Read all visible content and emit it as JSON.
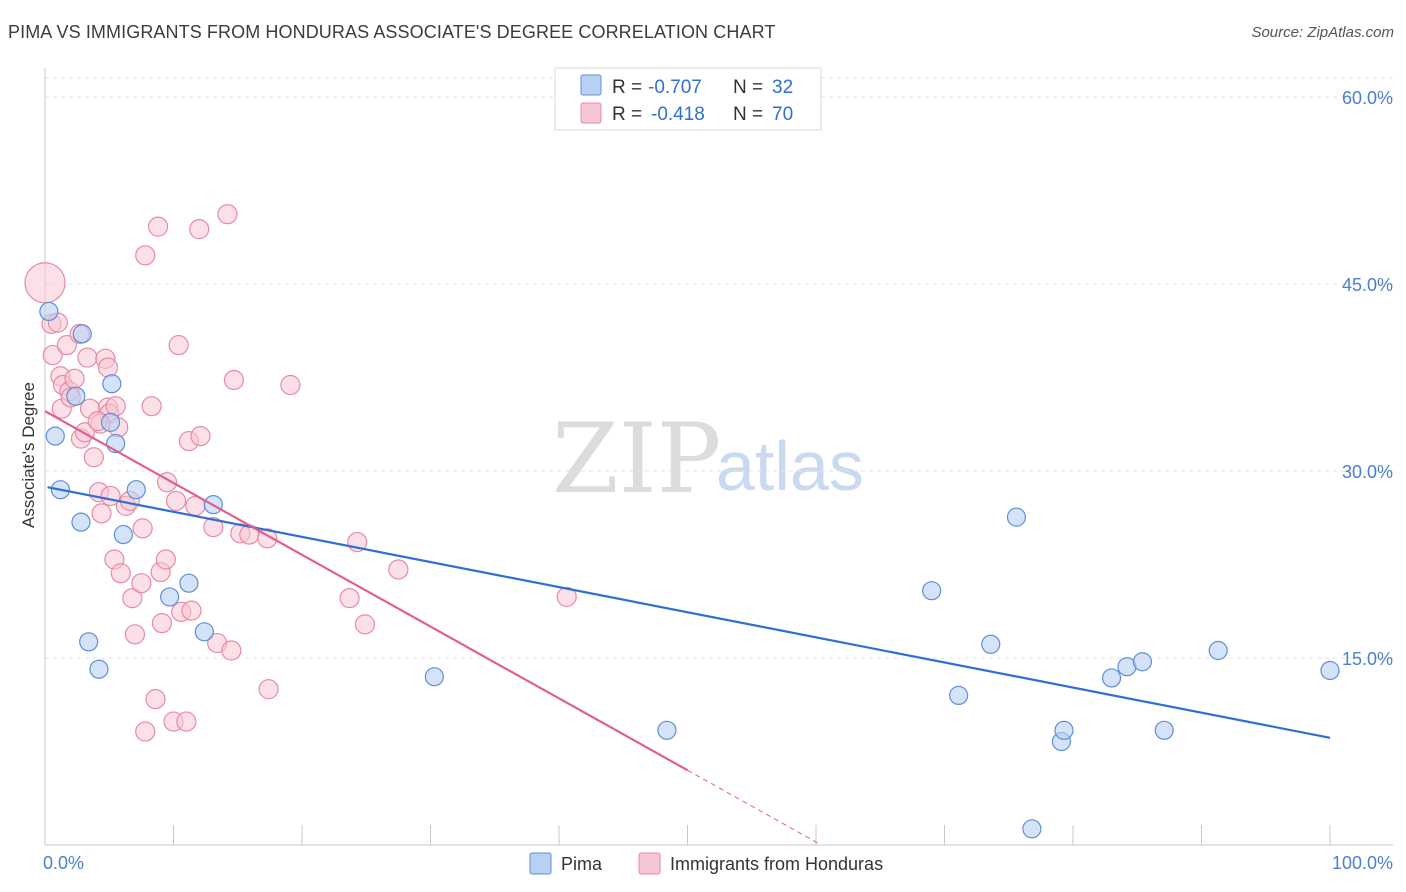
{
  "header": {
    "title": "PIMA VS IMMIGRANTS FROM HONDURAS ASSOCIATE'S DEGREE CORRELATION CHART",
    "source": "Source: ZipAtlas.com"
  },
  "watermark": {
    "zip": "ZIP",
    "atlas": "atlas"
  },
  "colors": {
    "pima_fill": "#b8d0f2",
    "pima_stroke": "#5f8fd6",
    "pima_line": "#2f6fd1",
    "hond_fill": "#f7c6d4",
    "hond_stroke": "#e88aa6",
    "hond_line": "#e0608c",
    "tick_blue": "#4a7fd0"
  },
  "legend": {
    "rows": [
      {
        "r_label": "R =",
        "r_value": "-0.707",
        "n_label": "N =",
        "n_value": "32"
      },
      {
        "r_label": "R =",
        "r_value": "-0.418",
        "n_label": "N =",
        "n_value": "70"
      }
    ]
  },
  "bottom_legend": [
    "Pima",
    "Immigrants from Honduras"
  ],
  "chart_data": {
    "type": "scatter",
    "title": "PIMA VS IMMIGRANTS FROM HONDURAS ASSOCIATE'S DEGREE CORRELATION CHART",
    "ylabel": "Associate's Degree",
    "xlabel": "",
    "xlim": [
      0,
      100
    ],
    "ylim": [
      0,
      60
    ],
    "x_tick_labels": [
      "0.0%",
      "100.0%"
    ],
    "y_ticks": [
      15,
      30,
      45,
      60
    ],
    "y_tick_labels": [
      "15.0%",
      "30.0%",
      "45.0%",
      "60.0%"
    ],
    "grid": true,
    "legend_position": "top-center",
    "series": [
      {
        "name": "Pima",
        "R": -0.707,
        "N": 32,
        "trend": {
          "x0": 0.2,
          "y0": 28.7,
          "x1": 100,
          "y1": 8.6
        },
        "points": [
          [
            0.3,
            42.8
          ],
          [
            0.8,
            32.8
          ],
          [
            1.2,
            28.5
          ],
          [
            2.4,
            36.0
          ],
          [
            2.9,
            41.0
          ],
          [
            2.8,
            25.9
          ],
          [
            3.4,
            16.3
          ],
          [
            4.2,
            14.1
          ],
          [
            5.1,
            33.9
          ],
          [
            5.2,
            37.0
          ],
          [
            5.5,
            32.2
          ],
          [
            6.1,
            24.9
          ],
          [
            7.1,
            28.5
          ],
          [
            9.7,
            19.9
          ],
          [
            11.2,
            21.0
          ],
          [
            12.4,
            17.1
          ],
          [
            13.1,
            27.3
          ],
          [
            30.3,
            13.5
          ],
          [
            48.4,
            9.2
          ],
          [
            69.0,
            20.4
          ],
          [
            71.1,
            12.0
          ],
          [
            73.6,
            16.1
          ],
          [
            75.6,
            26.3
          ],
          [
            76.8,
            1.3
          ],
          [
            79.1,
            8.3
          ],
          [
            79.3,
            9.2
          ],
          [
            83.0,
            13.4
          ],
          [
            84.2,
            14.3
          ],
          [
            85.4,
            14.7
          ],
          [
            87.1,
            9.2
          ],
          [
            91.3,
            15.6
          ],
          [
            100.0,
            14.0
          ]
        ]
      },
      {
        "name": "Immigrants from Honduras",
        "R": -0.418,
        "N": 70,
        "trend": {
          "x0": 0,
          "y0": 34.8,
          "x1": 50,
          "y1": 6.0
        },
        "trend_dashed": {
          "x0": 50,
          "x1": 60.2
        },
        "points": [
          [
            0.0,
            45.1
          ],
          [
            0.5,
            41.8
          ],
          [
            0.6,
            39.3
          ],
          [
            1.0,
            41.9
          ],
          [
            1.2,
            37.6
          ],
          [
            1.4,
            36.9
          ],
          [
            1.3,
            35.0
          ],
          [
            1.7,
            40.1
          ],
          [
            1.9,
            36.4
          ],
          [
            2.0,
            35.9
          ],
          [
            2.3,
            37.4
          ],
          [
            2.7,
            41.0
          ],
          [
            2.8,
            32.6
          ],
          [
            3.1,
            33.1
          ],
          [
            3.3,
            39.1
          ],
          [
            3.5,
            35.0
          ],
          [
            3.8,
            31.1
          ],
          [
            4.2,
            28.3
          ],
          [
            4.4,
            26.6
          ],
          [
            4.7,
            39.0
          ],
          [
            4.9,
            38.3
          ],
          [
            4.9,
            35.1
          ],
          [
            5.0,
            34.6
          ],
          [
            4.3,
            33.8
          ],
          [
            4.1,
            34.0
          ],
          [
            5.5,
            35.2
          ],
          [
            5.7,
            33.5
          ],
          [
            5.4,
            22.9
          ],
          [
            5.9,
            21.8
          ],
          [
            6.3,
            27.2
          ],
          [
            6.6,
            27.6
          ],
          [
            6.8,
            19.8
          ],
          [
            7.0,
            16.9
          ],
          [
            7.5,
            21.0
          ],
          [
            7.6,
            25.4
          ],
          [
            7.8,
            9.1
          ],
          [
            7.8,
            47.3
          ],
          [
            8.3,
            35.2
          ],
          [
            8.6,
            11.7
          ],
          [
            8.8,
            49.6
          ],
          [
            9.0,
            21.9
          ],
          [
            9.1,
            17.8
          ],
          [
            9.4,
            22.9
          ],
          [
            9.5,
            29.1
          ],
          [
            10.0,
            9.9
          ],
          [
            10.2,
            27.6
          ],
          [
            10.6,
            18.7
          ],
          [
            11.0,
            9.9
          ],
          [
            11.2,
            32.4
          ],
          [
            11.4,
            18.8
          ],
          [
            11.7,
            27.2
          ],
          [
            12.0,
            49.4
          ],
          [
            12.1,
            32.8
          ],
          [
            13.1,
            25.5
          ],
          [
            13.4,
            16.2
          ],
          [
            14.2,
            50.6
          ],
          [
            14.5,
            15.6
          ],
          [
            14.7,
            37.3
          ],
          [
            15.2,
            25.0
          ],
          [
            15.9,
            24.9
          ],
          [
            17.3,
            24.6
          ],
          [
            17.4,
            12.5
          ],
          [
            19.1,
            36.9
          ],
          [
            23.7,
            19.8
          ],
          [
            24.3,
            24.3
          ],
          [
            24.9,
            17.7
          ],
          [
            27.5,
            22.1
          ],
          [
            40.6,
            19.9
          ],
          [
            10.4,
            40.1
          ],
          [
            5.1,
            28.0
          ]
        ]
      }
    ]
  }
}
